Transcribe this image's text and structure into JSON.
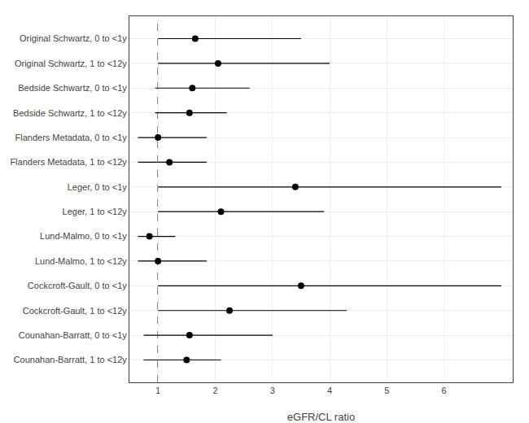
{
  "chart_data": {
    "type": "forest",
    "orientation": "horizontal",
    "categories": [
      "Original Schwartz, 0 to <1y",
      "Original Schwartz, 1 to <12y",
      "Bedside Schwartz, 0 to <1y",
      "Bedside Schwartz, 1 to <12y",
      "Flanders Metadata, 0 to <1y",
      "Flanders Metadata, 1 to <12y",
      "Leger, 0 to <1y",
      "Leger, 1 to <12y",
      "Lund-Malmo, 0 to <1y",
      "Lund-Malmo, 1 to <12y",
      "Cockcroft-Gault, 0 to <1y",
      "Cockcroft-Gault, 1 to <12y",
      "Counahan-Barratt, 0 to <1y",
      "Counahan-Barratt, 1 to <12y"
    ],
    "values": [
      1.65,
      2.05,
      1.6,
      1.55,
      1.0,
      1.2,
      3.4,
      2.1,
      0.85,
      1.0,
      3.5,
      2.25,
      1.55,
      1.5
    ],
    "ci_low": [
      1.0,
      1.0,
      0.95,
      0.95,
      0.65,
      0.65,
      1.0,
      1.0,
      0.65,
      0.65,
      1.0,
      1.0,
      0.75,
      0.75
    ],
    "ci_high": [
      3.5,
      4.0,
      2.6,
      2.2,
      1.85,
      1.85,
      7.0,
      3.9,
      1.3,
      1.85,
      7.0,
      4.3,
      3.0,
      2.1
    ],
    "color": "#000000",
    "marker": "circle",
    "xlabel": "eGFR/CL ratio",
    "xlim": [
      0.5,
      7.2
    ],
    "xticks": [
      1,
      2,
      3,
      4,
      5,
      6
    ],
    "reference_line": 1.0,
    "grid": true
  }
}
